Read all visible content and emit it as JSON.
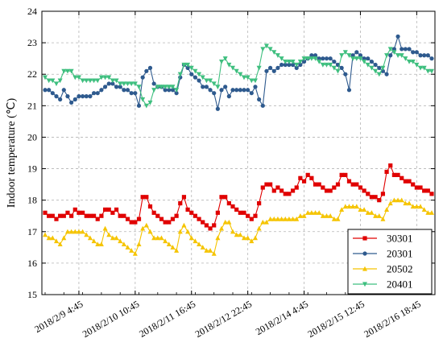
{
  "chart_data": {
    "type": "line",
    "ylabel": "Indoor temperature (℃)",
    "xlabel": "",
    "ylim": [
      15,
      24
    ],
    "yticks": [
      15,
      16,
      17,
      18,
      19,
      20,
      21,
      22,
      23,
      24
    ],
    "grid": true,
    "legend_position": "bottom-right",
    "n_points": 104,
    "x_tick_labels": [
      {
        "index": 9,
        "label": "2018/2/9 4:45"
      },
      {
        "index": 24,
        "label": "2018/2/10 10:45"
      },
      {
        "index": 39,
        "label": "2018/2/11 16:45"
      },
      {
        "index": 54,
        "label": "2018/2/12 22:45"
      },
      {
        "index": 69,
        "label": "2018/2/14 4:45"
      },
      {
        "index": 84,
        "label": "2018/2/15 12:45"
      },
      {
        "index": 99,
        "label": "2018/2/16 18:45"
      }
    ],
    "series": [
      {
        "name": "30301",
        "color": "#e00000",
        "marker": "square",
        "values": [
          17.6,
          17.5,
          17.5,
          17.4,
          17.5,
          17.5,
          17.6,
          17.5,
          17.7,
          17.6,
          17.6,
          17.5,
          17.5,
          17.5,
          17.4,
          17.5,
          17.7,
          17.7,
          17.6,
          17.7,
          17.5,
          17.5,
          17.4,
          17.3,
          17.3,
          17.4,
          18.1,
          18.1,
          17.8,
          17.6,
          17.5,
          17.4,
          17.3,
          17.3,
          17.4,
          17.5,
          17.9,
          18.1,
          17.7,
          17.6,
          17.5,
          17.4,
          17.3,
          17.2,
          17.1,
          17.2,
          17.6,
          18.1,
          18.1,
          17.9,
          17.8,
          17.7,
          17.6,
          17.6,
          17.5,
          17.4,
          17.5,
          17.9,
          18.4,
          18.5,
          18.5,
          18.3,
          18.4,
          18.3,
          18.2,
          18.2,
          18.3,
          18.4,
          18.7,
          18.6,
          18.8,
          18.7,
          18.5,
          18.5,
          18.4,
          18.3,
          18.3,
          18.4,
          18.5,
          18.8,
          18.8,
          18.6,
          18.5,
          18.5,
          18.4,
          18.3,
          18.2,
          18.1,
          18.1,
          18.0,
          18.2,
          18.9,
          19.1,
          18.8,
          18.8,
          18.7,
          18.6,
          18.6,
          18.5,
          18.4,
          18.4,
          18.3,
          18.3,
          18.2
        ]
      },
      {
        "name": "20301",
        "color": "#2e5a8e",
        "marker": "circle",
        "values": [
          21.5,
          21.5,
          21.4,
          21.3,
          21.2,
          21.5,
          21.3,
          21.1,
          21.2,
          21.3,
          21.3,
          21.3,
          21.3,
          21.4,
          21.4,
          21.5,
          21.6,
          21.7,
          21.7,
          21.6,
          21.6,
          21.5,
          21.5,
          21.4,
          21.4,
          21.0,
          21.9,
          22.1,
          22.2,
          21.7,
          21.6,
          21.6,
          21.5,
          21.5,
          21.5,
          21.4,
          21.9,
          22.3,
          22.2,
          22.0,
          21.9,
          21.8,
          21.6,
          21.6,
          21.5,
          21.4,
          20.9,
          21.5,
          21.6,
          21.3,
          21.5,
          21.5,
          21.5,
          21.5,
          21.5,
          21.4,
          21.6,
          21.2,
          21.0,
          22.1,
          22.2,
          22.1,
          22.2,
          22.3,
          22.3,
          22.3,
          22.3,
          22.2,
          22.3,
          22.4,
          22.5,
          22.6,
          22.6,
          22.5,
          22.5,
          22.5,
          22.5,
          22.4,
          22.3,
          22.2,
          22.0,
          21.5,
          22.6,
          22.7,
          22.6,
          22.5,
          22.5,
          22.4,
          22.3,
          22.2,
          22.1,
          22.0,
          22.6,
          22.8,
          23.2,
          22.8,
          22.8,
          22.8,
          22.7,
          22.7,
          22.6,
          22.6,
          22.6,
          22.5
        ]
      },
      {
        "name": "20502",
        "color": "#f5c400",
        "marker": "triangle-up",
        "values": [
          16.9,
          16.8,
          16.8,
          16.7,
          16.6,
          16.8,
          17.0,
          17.0,
          17.0,
          17.0,
          17.0,
          16.9,
          16.8,
          16.7,
          16.6,
          16.6,
          17.1,
          16.9,
          16.8,
          16.8,
          16.7,
          16.6,
          16.5,
          16.4,
          16.3,
          16.6,
          17.1,
          17.2,
          17.0,
          16.8,
          16.8,
          16.8,
          16.7,
          16.6,
          16.5,
          16.4,
          17.0,
          17.2,
          17.0,
          16.8,
          16.7,
          16.6,
          16.5,
          16.4,
          16.4,
          16.3,
          16.8,
          17.1,
          17.3,
          17.3,
          17.0,
          16.9,
          16.9,
          16.8,
          16.8,
          16.7,
          16.8,
          17.1,
          17.3,
          17.3,
          17.4,
          17.4,
          17.4,
          17.4,
          17.4,
          17.4,
          17.4,
          17.4,
          17.5,
          17.5,
          17.6,
          17.6,
          17.6,
          17.6,
          17.5,
          17.5,
          17.5,
          17.4,
          17.4,
          17.7,
          17.8,
          17.8,
          17.8,
          17.8,
          17.7,
          17.7,
          17.6,
          17.6,
          17.5,
          17.5,
          17.4,
          17.7,
          17.9,
          18.0,
          18.0,
          18.0,
          17.9,
          17.9,
          17.8,
          17.8,
          17.8,
          17.7,
          17.6,
          17.6
        ]
      },
      {
        "name": "20401",
        "color": "#3fbf7f",
        "marker": "triangle-down",
        "values": [
          21.9,
          21.8,
          21.8,
          21.7,
          21.8,
          22.1,
          22.1,
          22.1,
          21.9,
          21.9,
          21.8,
          21.8,
          21.8,
          21.8,
          21.8,
          21.9,
          21.9,
          21.9,
          21.8,
          21.8,
          21.7,
          21.7,
          21.7,
          21.7,
          21.7,
          21.6,
          21.2,
          21.0,
          21.1,
          21.5,
          21.6,
          21.6,
          21.6,
          21.6,
          21.6,
          21.5,
          22.0,
          22.3,
          22.3,
          22.2,
          22.1,
          22.0,
          21.9,
          21.8,
          21.8,
          21.7,
          21.6,
          22.4,
          22.5,
          22.3,
          22.2,
          22.1,
          22.0,
          21.9,
          21.9,
          21.8,
          21.8,
          22.2,
          22.8,
          22.9,
          22.8,
          22.7,
          22.6,
          22.5,
          22.4,
          22.4,
          22.4,
          22.3,
          22.4,
          22.5,
          22.5,
          22.5,
          22.5,
          22.4,
          22.3,
          22.3,
          22.3,
          22.2,
          22.1,
          22.6,
          22.7,
          22.6,
          22.5,
          22.5,
          22.5,
          22.4,
          22.3,
          22.2,
          22.1,
          22.0,
          22.2,
          22.6,
          22.8,
          22.7,
          22.6,
          22.6,
          22.5,
          22.4,
          22.4,
          22.3,
          22.2,
          22.2,
          22.1,
          22.1
        ]
      }
    ]
  }
}
